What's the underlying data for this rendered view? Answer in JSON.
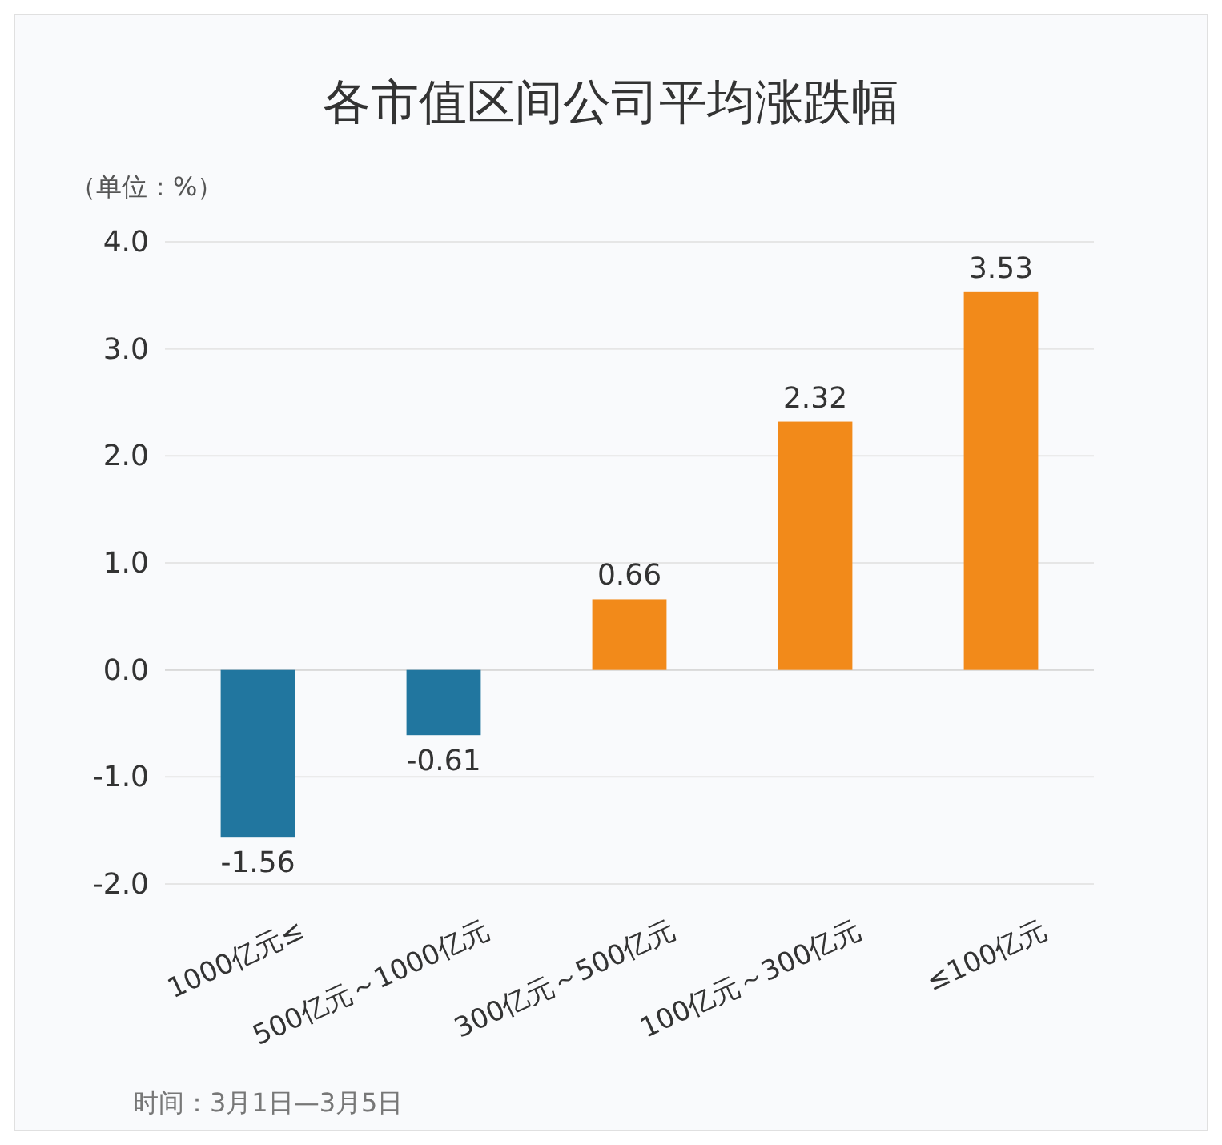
{
  "chart_data": {
    "type": "bar",
    "title": "各市值区间公司平均涨跌幅",
    "ylabel": "（单位：%）",
    "categories": [
      "1000亿元≤",
      "500亿元～1000亿元",
      "300亿元～500亿元",
      "100亿元～300亿元",
      "≤100亿元"
    ],
    "values": [
      -1.56,
      -0.61,
      0.66,
      2.32,
      3.53
    ],
    "colors": [
      "#21769f",
      "#21769f",
      "#f28a1a",
      "#f28a1a",
      "#f28a1a"
    ],
    "ylim": [
      -2,
      4
    ],
    "yticks": [
      {
        "value": -2,
        "label": "-2.0"
      },
      {
        "value": -1,
        "label": "-1.0"
      },
      {
        "value": 0,
        "label": "0.0"
      },
      {
        "value": 1,
        "label": "1.0"
      },
      {
        "value": 2,
        "label": "2.0"
      },
      {
        "value": 3,
        "label": "3.0"
      },
      {
        "value": 4,
        "label": "4.0"
      }
    ],
    "grid": "y",
    "data_labels": true,
    "annotations": [
      "时间：3月1日—3月5日"
    ]
  }
}
